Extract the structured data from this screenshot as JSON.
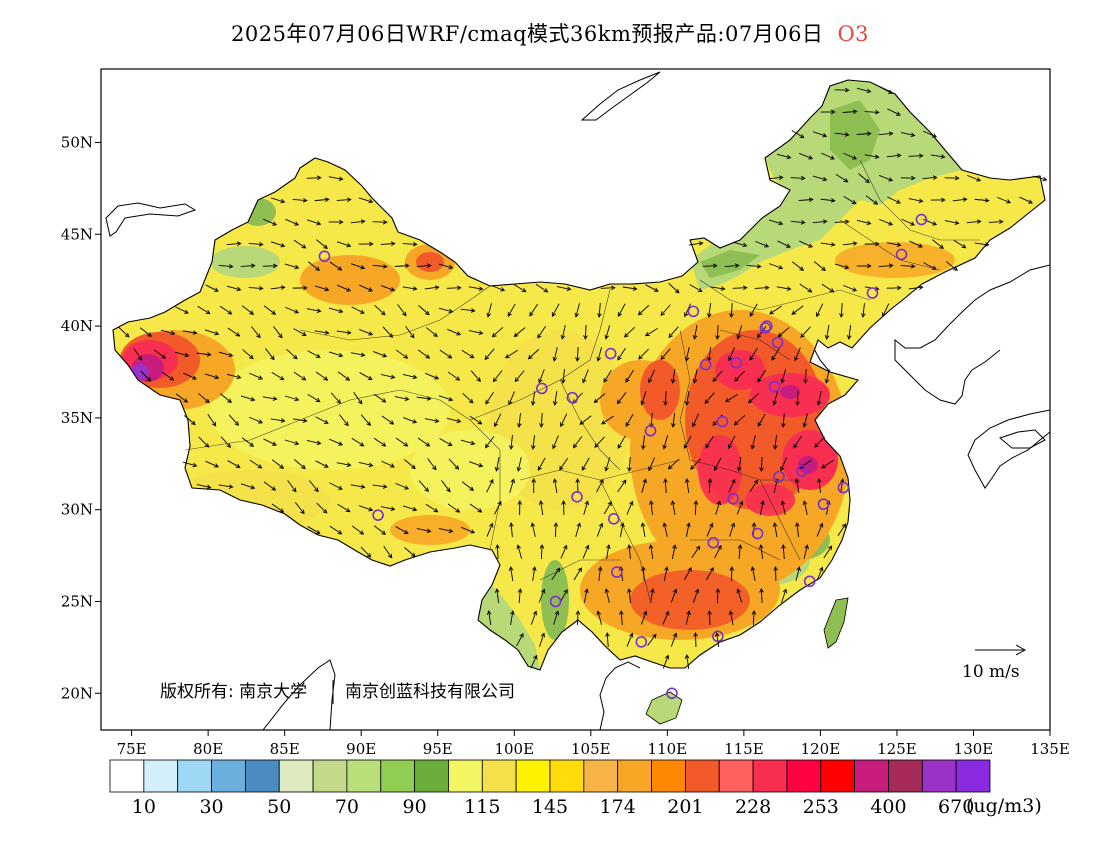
{
  "title": {
    "text": "2025年07月06日WRF/cmaq模式36km预报产品:07月06日",
    "species": "O3"
  },
  "axes": {
    "lon_ticks": [
      "75E",
      "80E",
      "85E",
      "90E",
      "95E",
      "100E",
      "105E",
      "110E",
      "115E",
      "120E",
      "125E",
      "130E",
      "135E"
    ],
    "lat_ticks": [
      "20N",
      "25N",
      "30N",
      "35N",
      "40N",
      "45N",
      "50N"
    ],
    "lon_range": [
      73,
      135
    ],
    "lat_range": [
      18,
      54
    ]
  },
  "copyright": {
    "part1": "版权所有: 南京大学",
    "part2": "南京创蓝科技有限公司"
  },
  "wind_scale": {
    "label": "10 m/s"
  },
  "legend": {
    "colors": [
      "#ffffff",
      "#d4effc",
      "#9ed8f4",
      "#6bb0dc",
      "#4a8cc2",
      "#dde9bf",
      "#c2d989",
      "#b8df7a",
      "#8fce52",
      "#6aad3a",
      "#f2f562",
      "#f4e04a",
      "#fff200",
      "#ffdc0a",
      "#f5b445",
      "#f7a726",
      "#ff8800",
      "#f25a2a",
      "#ff6060",
      "#f82f51",
      "#ff0042",
      "#ff0000",
      "#c81d7c",
      "#a52a5a",
      "#9b32c8",
      "#8a2be2"
    ],
    "labels": [
      "10",
      "30",
      "50",
      "70",
      "90",
      "115",
      "145",
      "174",
      "201",
      "228",
      "253",
      "400",
      "670"
    ],
    "unit": "(ug/m3)"
  },
  "palette": {
    "land_base": "#f7e84a",
    "orange": "#f7a726",
    "red": "#f25a2a",
    "crimson": "#f82f51",
    "purple": "#a52a8a",
    "green": "#b8d978",
    "green_dark": "#8fbf52",
    "marker": "#7b2fd0"
  },
  "city_markers": [
    {
      "lon": 87.6,
      "lat": 43.8
    },
    {
      "lon": 91.1,
      "lat": 29.7
    },
    {
      "lon": 101.8,
      "lat": 36.6
    },
    {
      "lon": 103.8,
      "lat": 36.1
    },
    {
      "lon": 106.3,
      "lat": 38.5
    },
    {
      "lon": 111.7,
      "lat": 40.8
    },
    {
      "lon": 112.5,
      "lat": 37.9
    },
    {
      "lon": 114.5,
      "lat": 38.0
    },
    {
      "lon": 116.4,
      "lat": 39.9
    },
    {
      "lon": 117.2,
      "lat": 39.1
    },
    {
      "lon": 117.0,
      "lat": 36.7
    },
    {
      "lon": 113.6,
      "lat": 34.8
    },
    {
      "lon": 108.9,
      "lat": 34.3
    },
    {
      "lon": 104.1,
      "lat": 30.7
    },
    {
      "lon": 106.5,
      "lat": 29.5
    },
    {
      "lon": 114.3,
      "lat": 30.6
    },
    {
      "lon": 117.3,
      "lat": 31.8
    },
    {
      "lon": 118.8,
      "lat": 32.1
    },
    {
      "lon": 120.2,
      "lat": 30.3
    },
    {
      "lon": 121.5,
      "lat": 31.2
    },
    {
      "lon": 115.9,
      "lat": 28.7
    },
    {
      "lon": 113.0,
      "lat": 28.2
    },
    {
      "lon": 106.7,
      "lat": 26.6
    },
    {
      "lon": 102.7,
      "lat": 25.0
    },
    {
      "lon": 108.3,
      "lat": 22.8
    },
    {
      "lon": 113.3,
      "lat": 23.1
    },
    {
      "lon": 119.3,
      "lat": 26.1
    },
    {
      "lon": 110.3,
      "lat": 20.0
    },
    {
      "lon": 123.4,
      "lat": 41.8
    },
    {
      "lon": 125.3,
      "lat": 43.9
    },
    {
      "lon": 126.6,
      "lat": 45.8
    },
    {
      "lon": 116.5,
      "lat": 40.0
    }
  ]
}
